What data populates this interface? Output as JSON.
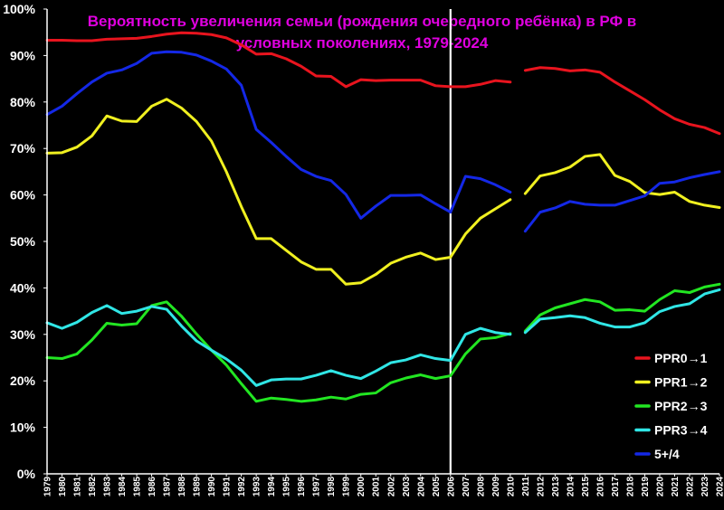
{
  "chart_data": {
    "type": "line",
    "title_lines": [
      "Вероятность увеличения семьи (рождения очередного ребёнка) в РФ в",
      "условных поколениях, 1979-2024"
    ],
    "x": [
      1979,
      1980,
      1981,
      1982,
      1983,
      1984,
      1985,
      1986,
      1987,
      1988,
      1989,
      1990,
      1991,
      1992,
      1993,
      1994,
      1995,
      1996,
      1997,
      1998,
      1999,
      2000,
      2001,
      2002,
      2003,
      2004,
      2005,
      2006,
      2007,
      2008,
      2009,
      2010,
      2011,
      2012,
      2013,
      2014,
      2015,
      2016,
      2017,
      2018,
      2019,
      2020,
      2021,
      2022,
      2023,
      2024
    ],
    "ylim": [
      0,
      100
    ],
    "yticks": [
      0,
      10,
      20,
      30,
      40,
      50,
      60,
      70,
      80,
      90,
      100
    ],
    "ytick_suffix": "%",
    "grid": false,
    "marker_year": 2006,
    "gap_after": 2010,
    "legend_position": "bottom-right",
    "colors": {
      "background": "#000000",
      "axis": "#ffffff",
      "marker": "#ffffff",
      "title": "#e000e0"
    },
    "series": [
      {
        "name": "PPR0→1",
        "color": "#e8141e",
        "values": [
          93.3,
          93.3,
          93.2,
          93.2,
          93.5,
          93.6,
          93.7,
          94.1,
          94.6,
          94.9,
          94.8,
          94.5,
          93.8,
          92.3,
          90.3,
          90.4,
          89.3,
          87.7,
          85.6,
          85.5,
          83.3,
          84.8,
          84.6,
          84.7,
          84.7,
          84.7,
          83.5,
          83.3,
          83.3,
          83.8,
          84.6,
          84.3,
          86.8,
          87.4,
          87.2,
          86.7,
          86.9,
          86.4,
          84.3,
          82.4,
          80.5,
          78.3,
          76.4,
          75.2,
          74.5,
          73.2
        ]
      },
      {
        "name": "PPR1→2",
        "color": "#f0f020",
        "values": [
          69.0,
          69.1,
          70.3,
          72.7,
          77.0,
          75.9,
          75.8,
          79.1,
          80.6,
          78.7,
          75.8,
          71.6,
          65.0,
          57.5,
          50.6,
          50.6,
          48.1,
          45.6,
          44.0,
          44.0,
          40.8,
          41.1,
          42.9,
          45.3,
          46.6,
          47.5,
          46.1,
          46.6,
          51.6,
          55.0,
          57.0,
          59.0,
          60.3,
          64.1,
          64.8,
          66.0,
          68.3,
          68.7,
          64.2,
          62.9,
          60.5,
          60.1,
          60.6,
          58.6,
          57.8,
          57.3
        ]
      },
      {
        "name": "PPR2→3",
        "color": "#22e622",
        "values": [
          25.0,
          24.8,
          25.8,
          28.8,
          32.4,
          32.0,
          32.3,
          36.2,
          37.0,
          33.9,
          30.1,
          26.6,
          23.4,
          19.4,
          15.6,
          16.3,
          16.0,
          15.6,
          15.9,
          16.5,
          16.1,
          17.1,
          17.4,
          19.6,
          20.6,
          21.3,
          20.5,
          21.1,
          25.8,
          29.0,
          29.3,
          30.2,
          30.7,
          34.2,
          35.7,
          36.6,
          37.5,
          37.0,
          35.2,
          35.3,
          35.0,
          37.5,
          39.4,
          39.0,
          40.2,
          40.8
        ]
      },
      {
        "name": "PPR3→4",
        "color": "#30e6e6",
        "values": [
          32.5,
          31.3,
          32.6,
          34.7,
          36.2,
          34.5,
          35.0,
          36.0,
          35.4,
          31.8,
          28.6,
          26.6,
          24.7,
          22.3,
          19.0,
          20.2,
          20.4,
          20.4,
          21.2,
          22.2,
          21.2,
          20.5,
          22.1,
          23.9,
          24.5,
          25.6,
          24.8,
          24.4,
          30.0,
          31.3,
          30.4,
          30.0,
          30.4,
          33.3,
          33.6,
          34.0,
          33.6,
          32.4,
          31.6,
          31.6,
          32.5,
          34.9,
          36.0,
          36.6,
          38.7,
          39.6
        ]
      },
      {
        "name": "5+/4",
        "color": "#1428e6",
        "values": [
          77.3,
          79.1,
          81.8,
          84.3,
          86.2,
          86.9,
          88.3,
          90.5,
          90.8,
          90.7,
          90.1,
          88.8,
          87.1,
          83.6,
          74.1,
          71.3,
          68.3,
          65.5,
          64.0,
          63.1,
          60.1,
          55.0,
          57.6,
          59.9,
          59.9,
          60.0,
          58.1,
          56.3,
          64.0,
          63.5,
          62.2,
          60.6,
          52.2,
          56.3,
          57.2,
          58.6,
          58.0,
          57.8,
          57.8,
          58.8,
          59.8,
          62.5,
          62.8,
          63.7,
          64.4,
          65.0
        ]
      }
    ]
  }
}
